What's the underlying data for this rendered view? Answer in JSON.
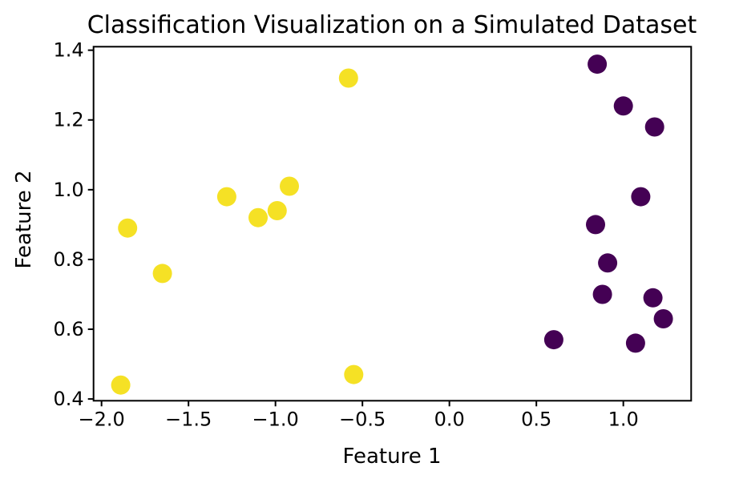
{
  "figure": {
    "background": "#ffffff"
  },
  "chart_data": {
    "type": "scatter",
    "title": "Classification Visualization on a Simulated Dataset",
    "xlabel": "Feature 1",
    "ylabel": "Feature 2",
    "xlim": [
      -2.046,
      1.39
    ],
    "ylim": [
      0.395,
      1.41
    ],
    "x_ticks": [
      -2.0,
      -1.5,
      -1.0,
      -0.5,
      0.0,
      0.5,
      1.0
    ],
    "x_tick_labels": [
      "−2.0",
      "−1.5",
      "−1.0",
      "−0.5",
      "0.0",
      "0.5",
      "1.0"
    ],
    "y_ticks": [
      0.4,
      0.6,
      0.8,
      1.0,
      1.2,
      1.4
    ],
    "y_tick_labels": [
      "0.4",
      "0.6",
      "0.8",
      "1.0",
      "1.2",
      "1.4"
    ],
    "grid": false,
    "legend": "none",
    "marker": {
      "shape": "circle",
      "radius_px": 12
    },
    "axis_color": "#000000",
    "series": [
      {
        "name": "class-yellow",
        "color": "#f5e125",
        "points": [
          [
            -1.89,
            0.44
          ],
          [
            -1.85,
            0.89
          ],
          [
            -1.65,
            0.76
          ],
          [
            -1.28,
            0.98
          ],
          [
            -1.1,
            0.92
          ],
          [
            -0.99,
            0.94
          ],
          [
            -0.92,
            1.01
          ],
          [
            -0.58,
            1.32
          ],
          [
            -0.55,
            0.47
          ]
        ]
      },
      {
        "name": "class-purple",
        "color": "#440154",
        "points": [
          [
            0.6,
            0.57
          ],
          [
            0.84,
            0.9
          ],
          [
            0.85,
            1.36
          ],
          [
            0.88,
            0.7
          ],
          [
            0.91,
            0.79
          ],
          [
            1.0,
            1.24
          ],
          [
            1.07,
            0.56
          ],
          [
            1.1,
            0.98
          ],
          [
            1.17,
            0.69
          ],
          [
            1.18,
            1.18
          ],
          [
            1.23,
            0.63
          ]
        ]
      }
    ]
  }
}
